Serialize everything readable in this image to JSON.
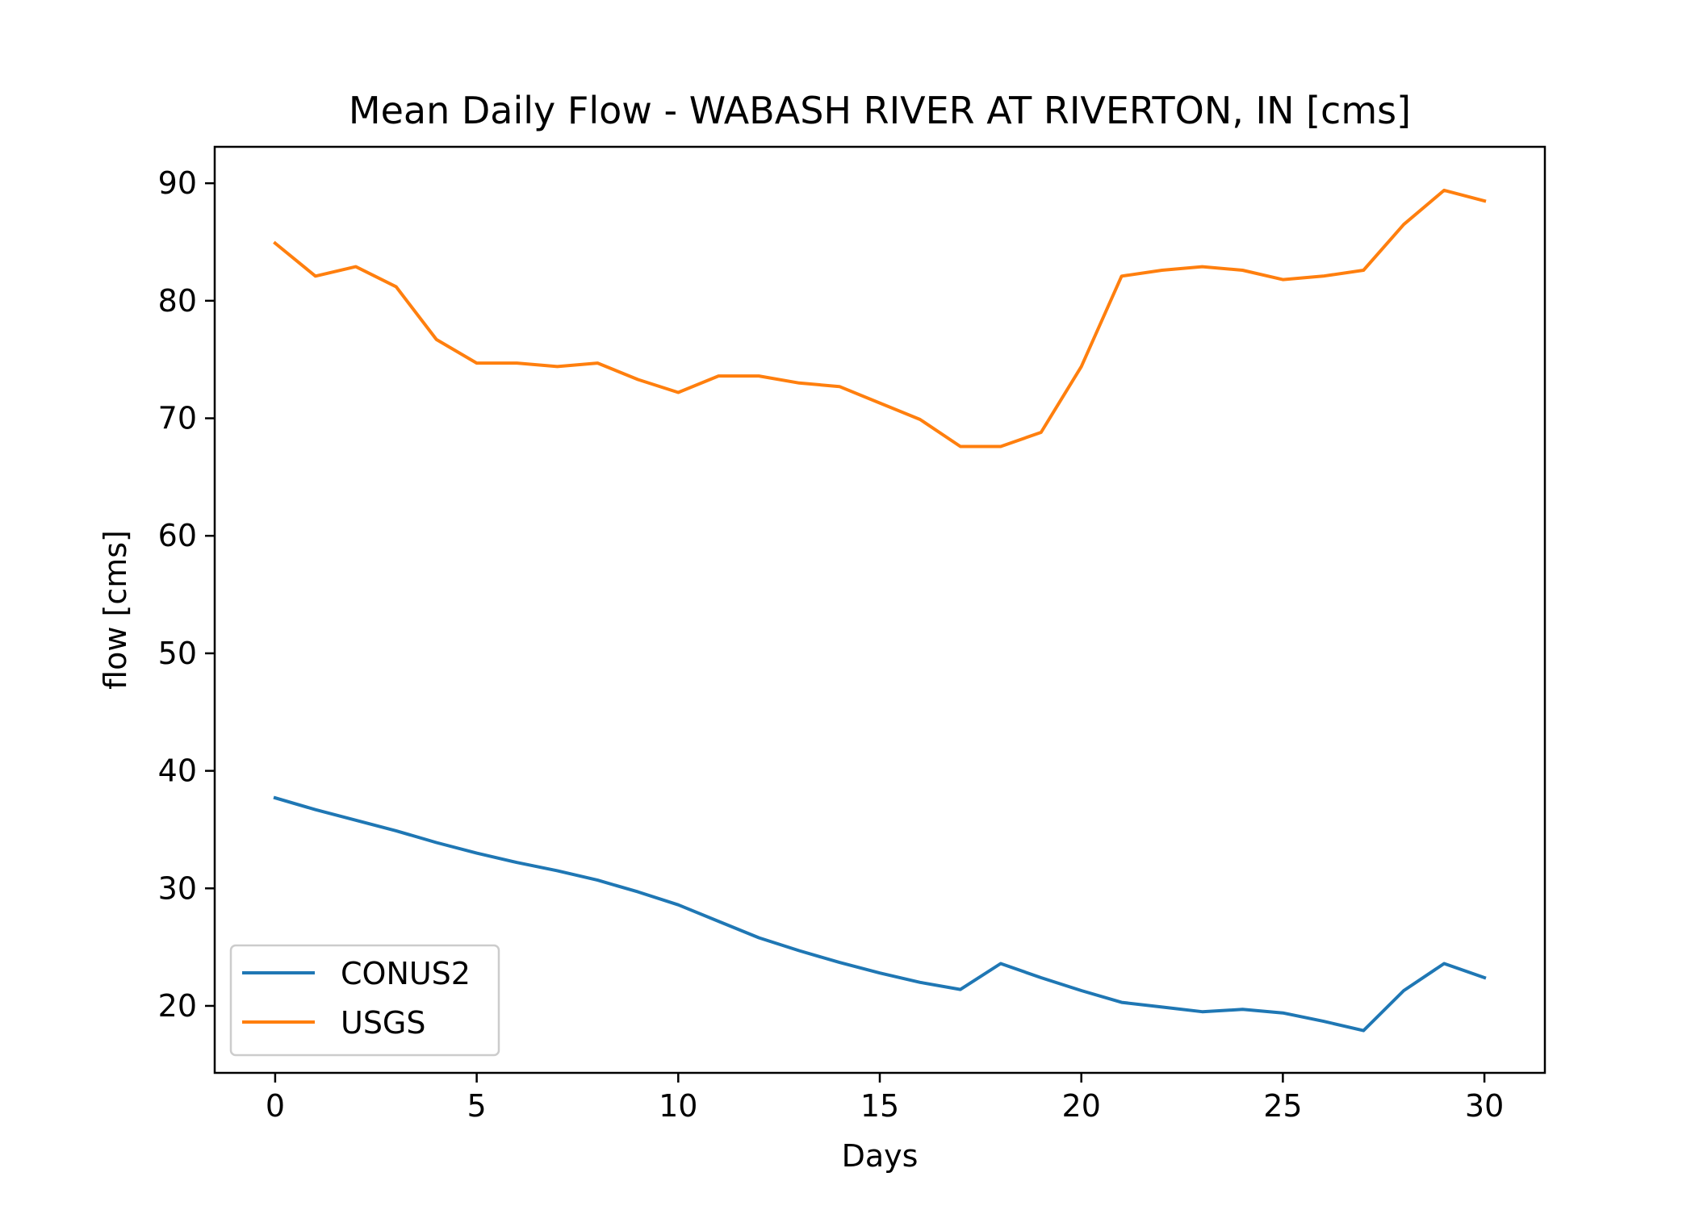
{
  "chart_data": {
    "type": "line",
    "title": "Mean Daily Flow - WABASH RIVER AT RIVERTON, IN [cms]",
    "xlabel": "Days",
    "ylabel": "flow [cms]",
    "xlim": [
      -1.5,
      31.5
    ],
    "ylim": [
      14.3,
      93.1
    ],
    "xticks": [
      0,
      5,
      10,
      15,
      20,
      25,
      30
    ],
    "yticks": [
      20,
      30,
      40,
      50,
      60,
      70,
      80,
      90
    ],
    "grid": false,
    "legend": {
      "location": "lower-left"
    },
    "x": [
      0,
      1,
      2,
      3,
      4,
      5,
      6,
      7,
      8,
      9,
      10,
      11,
      12,
      13,
      14,
      15,
      16,
      17,
      18,
      19,
      20,
      21,
      22,
      23,
      24,
      25,
      26,
      27,
      28,
      29,
      30
    ],
    "series": [
      {
        "name": "CONUS2",
        "color": "#1f77b4",
        "values": [
          37.7,
          36.7,
          35.8,
          34.9,
          33.9,
          33.0,
          32.2,
          31.5,
          30.7,
          29.7,
          28.6,
          27.2,
          25.8,
          24.7,
          23.7,
          22.8,
          22.0,
          21.4,
          23.6,
          22.4,
          21.3,
          20.3,
          19.9,
          19.5,
          19.7,
          19.4,
          18.7,
          17.9,
          21.3,
          23.6,
          22.4
        ]
      },
      {
        "name": "USGS",
        "color": "#ff7f0e",
        "values": [
          84.9,
          82.1,
          82.9,
          81.2,
          76.7,
          74.7,
          74.7,
          74.4,
          74.7,
          73.3,
          72.2,
          73.6,
          73.6,
          73.0,
          72.7,
          71.3,
          69.9,
          67.6,
          67.6,
          68.8,
          74.4,
          82.1,
          82.6,
          82.9,
          82.6,
          81.8,
          82.1,
          82.6,
          86.5,
          89.4,
          88.5
        ]
      }
    ]
  }
}
